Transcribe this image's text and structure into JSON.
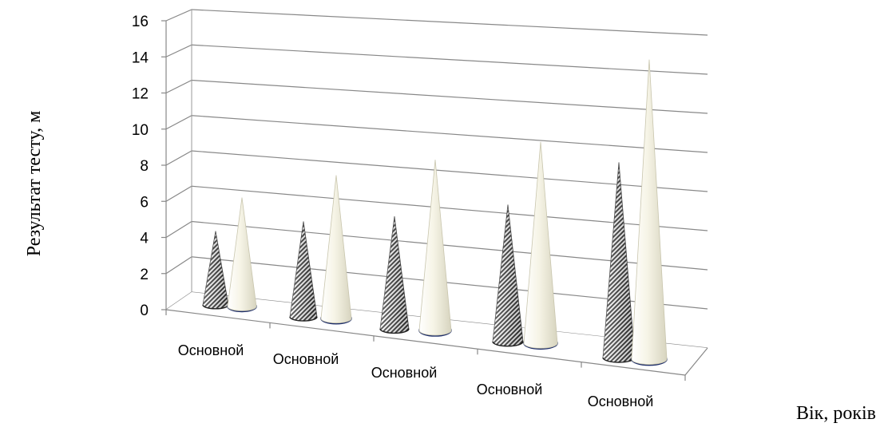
{
  "chart_data": {
    "type": "bar",
    "shape": "cone-3d",
    "title": "",
    "categories": [
      "Основной",
      "Основной",
      "Основной",
      "Основной",
      "Основной"
    ],
    "series": [
      {
        "pattern": "diagonal-hatch",
        "color": "#555555",
        "values": [
          4.2,
          5.2,
          5.8,
          6.6,
          8.8
        ]
      },
      {
        "pattern": "solid",
        "color": "#f2f0e2",
        "values": [
          6.2,
          7.8,
          8.8,
          9.7,
          13.5
        ]
      }
    ],
    "ylabel": "Результат тесту, м",
    "xlabel": "Вік, років",
    "ylim": [
      0,
      16
    ],
    "yticks": [
      "0",
      "2",
      "4",
      "6",
      "8",
      "10",
      "12",
      "14",
      "16"
    ],
    "grid": true,
    "legend": "none"
  }
}
